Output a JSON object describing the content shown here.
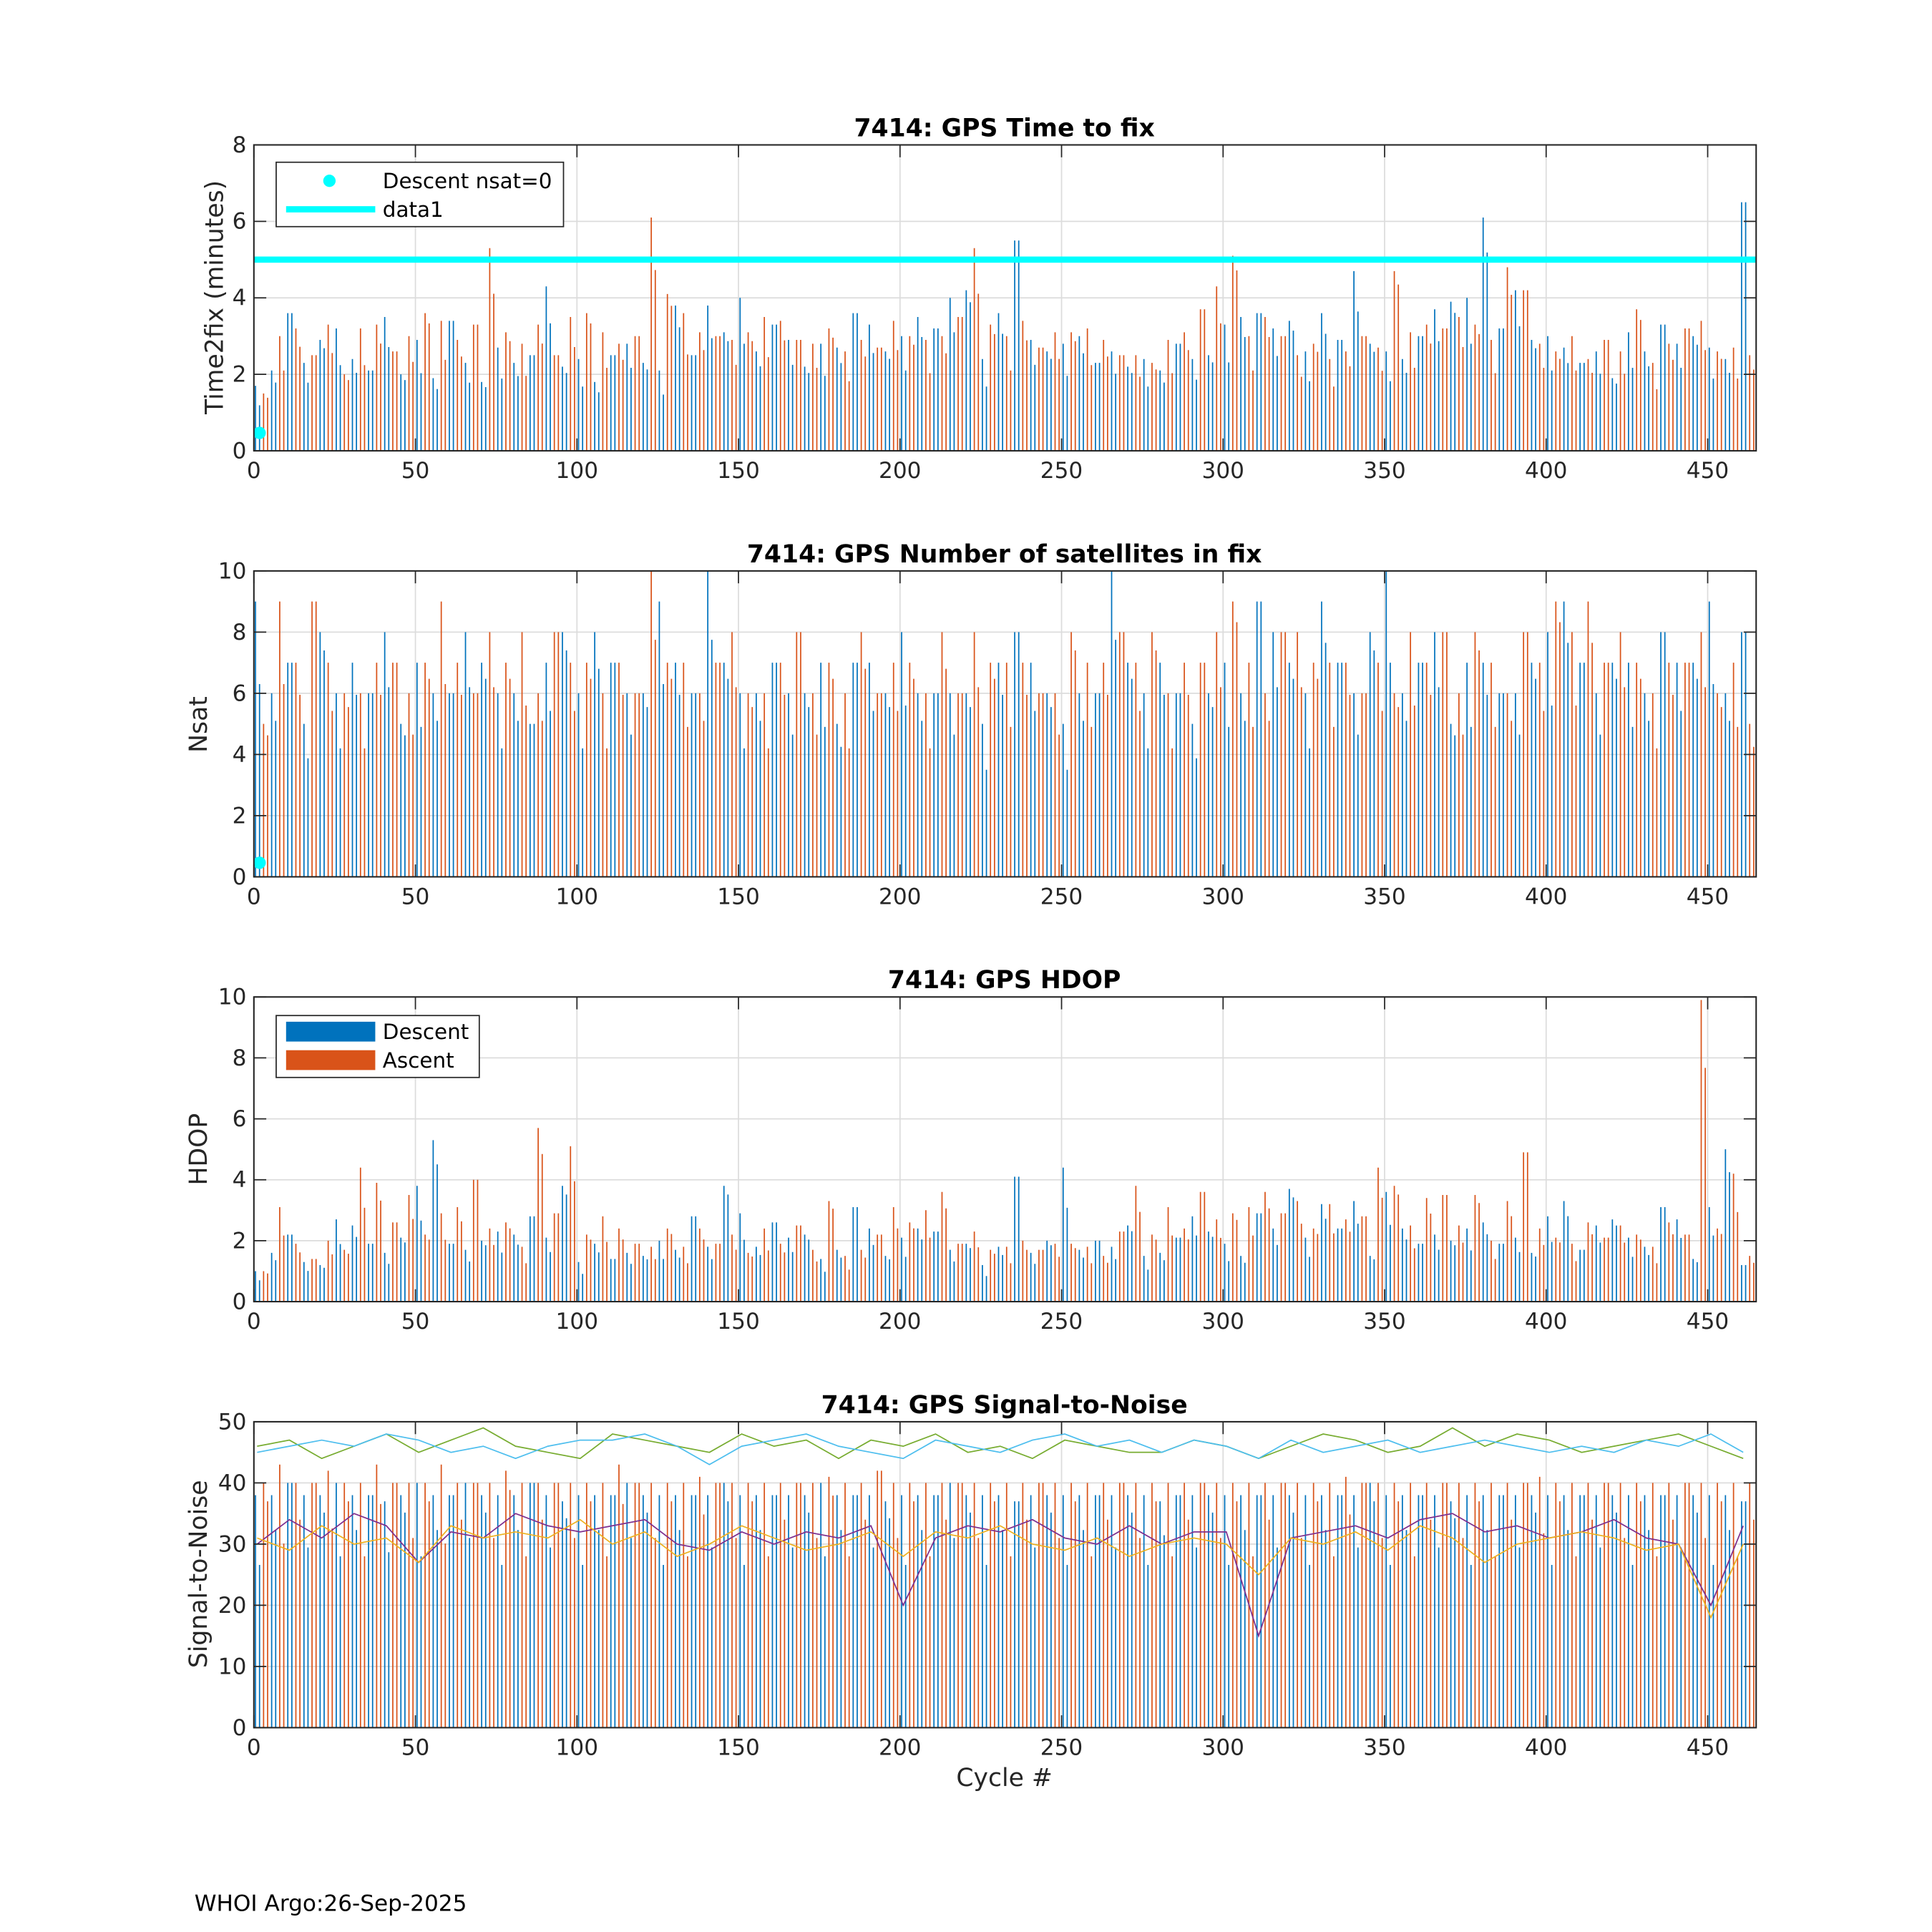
{
  "colors": {
    "descent": "#0072BD",
    "ascent": "#D95319",
    "cyan": "#00FFFF",
    "green": "#77AC30",
    "lightblue": "#4DBEEE",
    "purple": "#7E2F8E",
    "orange": "#EDB120",
    "grid": "#dcdcdc",
    "axis": "#262626"
  },
  "footer": "WHOI Argo:26-Sep-2025",
  "chart_data": [
    {
      "type": "bar",
      "title": "7414: GPS Time to fix",
      "xlabel": "",
      "ylabel": "Time2fix (minutes)",
      "xlim": [
        0,
        465
      ],
      "ylim": [
        0,
        8
      ],
      "xticks": [
        0,
        50,
        100,
        150,
        200,
        250,
        300,
        350,
        400,
        450
      ],
      "yticks": [
        0,
        2,
        4,
        6,
        8
      ],
      "grid": true,
      "legend_placement": "top-left",
      "legend": [
        "Descent nsat=0",
        "data1"
      ],
      "x_step": 5,
      "reference_line": {
        "name": "data1",
        "y": 5
      },
      "markers": [
        {
          "name": "Descent nsat=0",
          "x": 1,
          "y": 0.5
        }
      ],
      "series": [
        {
          "name": "Descent",
          "values": [
            1.7,
            2.1,
            3.6,
            2.3,
            2.9,
            3.2,
            2.4,
            2.1,
            3.5,
            2.0,
            2.9,
            1.9,
            3.4,
            2.3,
            1.8,
            2.7,
            2.3,
            2.5,
            4.3,
            2.2,
            2.4,
            1.8,
            2.5,
            2.8,
            2.3,
            2.1,
            3.8,
            2.5,
            3.8,
            3.1,
            4.0,
            2.6,
            3.3,
            2.9,
            2.2,
            2.8,
            2.7,
            3.6,
            3.3,
            2.6,
            3.0,
            3.5,
            3.2,
            4.0,
            4.2,
            2.4,
            3.6,
            5.5,
            2.9,
            2.6,
            2.8,
            3.0,
            2.3,
            2.6,
            2.2,
            2.4,
            2.1,
            2.8,
            2.4,
            2.5,
            3.3,
            3.5,
            3.6,
            3.2,
            3.4,
            2.6,
            3.6,
            2.9,
            4.7,
            2.8,
            2.6,
            2.4,
            3.0,
            3.7,
            3.9,
            4.0,
            6.1,
            3.2,
            4.2,
            2.9,
            3.0,
            2.7,
            2.3,
            2.6,
            1.9,
            3.1,
            2.6,
            3.3,
            2.8,
            3.0,
            2.7,
            2.4,
            6.5
          ]
        },
        {
          "name": "Ascent",
          "values": [
            1.5,
            3.0,
            3.2,
            2.5,
            3.3,
            2.0,
            3.2,
            3.3,
            2.6,
            3.0,
            3.6,
            3.4,
            2.9,
            3.3,
            5.3,
            3.1,
            2.8,
            3.3,
            2.5,
            3.5,
            3.6,
            3.1,
            2.8,
            3.0,
            6.1,
            4.1,
            3.6,
            3.1,
            3.0,
            2.9,
            3.1,
            3.5,
            3.4,
            2.9,
            2.8,
            3.2,
            2.6,
            2.9,
            2.7,
            3.4,
            3.0,
            2.9,
            3.0,
            3.5,
            5.3,
            3.3,
            3.0,
            3.4,
            2.7,
            3.1,
            3.1,
            3.2,
            2.9,
            2.5,
            2.5,
            2.3,
            2.9,
            3.1,
            3.7,
            4.3,
            5.1,
            3.0,
            3.5,
            3.0,
            2.5,
            2.8,
            2.4,
            2.6,
            3.0,
            2.7,
            4.7,
            3.1,
            3.3,
            3.2,
            3.5,
            3.3,
            2.9,
            4.8,
            4.2,
            2.8,
            2.6,
            3.0,
            2.4,
            2.9,
            2.6,
            3.7,
            2.3,
            2.8,
            3.2,
            3.4,
            2.6,
            2.7,
            2.5
          ]
        }
      ]
    },
    {
      "type": "bar",
      "title": "7414: GPS Number of satellites in fix",
      "xlabel": "",
      "ylabel": "Nsat",
      "xlim": [
        0,
        465
      ],
      "ylim": [
        0,
        10
      ],
      "xticks": [
        0,
        50,
        100,
        150,
        200,
        250,
        300,
        350,
        400,
        450
      ],
      "yticks": [
        0,
        2,
        4,
        6,
        8,
        10
      ],
      "grid": true,
      "x_step": 5,
      "markers": [
        {
          "name": "Descent nsat=0",
          "x": 1,
          "y": 0.5
        }
      ],
      "series": [
        {
          "name": "Descent",
          "values": [
            9,
            6,
            7,
            5,
            8,
            6,
            7,
            6,
            8,
            5,
            7,
            6,
            6,
            8,
            7,
            6,
            6,
            5,
            7,
            8,
            6,
            8,
            7,
            6,
            6,
            9,
            7,
            6,
            10,
            7,
            6,
            6,
            7,
            6,
            6,
            7,
            5,
            7,
            7,
            6,
            8,
            6,
            6,
            6,
            6,
            5,
            7,
            8,
            7,
            6,
            5,
            6,
            6,
            10,
            7,
            6,
            7,
            6,
            5,
            6,
            7,
            6,
            9,
            8,
            7,
            6,
            9,
            7,
            6,
            8,
            10,
            6,
            7,
            8,
            5,
            7,
            7,
            6,
            6,
            7,
            8,
            9,
            7,
            6,
            7,
            7,
            6,
            8,
            7,
            7,
            9,
            6,
            8
          ]
        },
        {
          "name": "Ascent",
          "values": [
            5,
            9,
            7,
            9,
            7,
            6,
            6,
            7,
            7,
            6,
            7,
            9,
            7,
            6,
            8,
            7,
            8,
            6,
            8,
            7,
            7,
            6,
            7,
            6,
            10,
            7,
            7,
            6,
            7,
            8,
            6,
            6,
            7,
            8,
            6,
            7,
            6,
            8,
            6,
            7,
            7,
            6,
            8,
            6,
            8,
            7,
            7,
            7,
            6,
            6,
            8,
            7,
            7,
            8,
            7,
            8,
            6,
            7,
            7,
            8,
            9,
            7,
            6,
            8,
            8,
            7,
            7,
            7,
            6,
            7,
            6,
            8,
            7,
            8,
            6,
            8,
            7,
            6,
            8,
            7,
            9,
            8,
            9,
            7,
            8,
            7,
            6,
            7,
            7,
            8,
            6,
            7,
            5
          ]
        }
      ]
    },
    {
      "type": "bar",
      "title": "7414: GPS HDOP",
      "xlabel": "",
      "ylabel": "HDOP",
      "xlim": [
        0,
        465
      ],
      "ylim": [
        0,
        10
      ],
      "xticks": [
        0,
        50,
        100,
        150,
        200,
        250,
        300,
        350,
        400,
        450
      ],
      "yticks": [
        0,
        2,
        4,
        6,
        8,
        10
      ],
      "grid": true,
      "legend_placement": "top-left",
      "legend": [
        "Descent",
        "Ascent"
      ],
      "x_step": 5,
      "series": [
        {
          "name": "Descent",
          "values": [
            1,
            1.6,
            2.2,
            1.3,
            1.2,
            2.7,
            2.5,
            1.9,
            1.6,
            2.1,
            3.8,
            5.3,
            1.9,
            1.7,
            2.0,
            2.3,
            2.2,
            2.8,
            2.1,
            3.8,
            1.3,
            1.9,
            1.4,
            1.6,
            1.5,
            2.0,
            1.7,
            2.8,
            1.8,
            3.8,
            2.9,
            1.8,
            2.6,
            2.1,
            2.2,
            1.4,
            1.7,
            3.1,
            2.4,
            1.5,
            2.1,
            2.4,
            2.3,
            1.7,
            1.9,
            1.2,
            1.8,
            4.1,
            1.6,
            2.0,
            4.4,
            1.7,
            2.0,
            1.8,
            2.5,
            1.5,
            1.6,
            2.1,
            2.8,
            2.3,
            1.9,
            1.5,
            2.9,
            2.4,
            3.7,
            2.1,
            3.2,
            2.4,
            3.3,
            1.5,
            3.6,
            2.4,
            1.9,
            2.2,
            2.0,
            2.4,
            2.6,
            1.9,
            2.1,
            1.6,
            2.8,
            3.3,
            1.7,
            2.5,
            2.7,
            2.1,
            1.8,
            3.1,
            2.7,
            1.4,
            3.1,
            5.0,
            1.2
          ]
        },
        {
          "name": "Ascent",
          "values": [
            1,
            3.1,
            1.9,
            1.4,
            2.0,
            1.7,
            4.4,
            3.9,
            2.6,
            3.5,
            2.2,
            2.9,
            3.1,
            4.0,
            2.4,
            2.6,
            1.8,
            5.7,
            2.9,
            5.1,
            2.2,
            2.8,
            2.4,
            1.9,
            1.8,
            2.4,
            1.8,
            2.4,
            1.9,
            2.2,
            1.6,
            2.4,
            1.9,
            2.5,
            1.7,
            3.3,
            1.5,
            1.7,
            2.2,
            3.1,
            2.6,
            3.0,
            3.6,
            1.9,
            2.3,
            1.7,
            1.8,
            2.0,
            1.7,
            1.9,
            1.9,
            1.8,
            1.5,
            2.3,
            3.8,
            2.2,
            3.1,
            2.4,
            3.6,
            2.7,
            2.9,
            3.1,
            3.6,
            2.9,
            3.3,
            2.4,
            3.2,
            2.7,
            2.8,
            4.4,
            3.8,
            2.5,
            3.4,
            3.5,
            2.5,
            3.5,
            2.0,
            3.3,
            4.9,
            2.4,
            2.1,
            1.9,
            2.6,
            2.1,
            2.5,
            2.2,
            1.8,
            2.6,
            2.2,
            9.9,
            2.4,
            4.2,
            1.5
          ]
        }
      ]
    },
    {
      "type": "bar",
      "title": "7414: GPS Signal-to-Noise",
      "xlabel": "Cycle #",
      "ylabel": "Signal-to-Noise",
      "xlim": [
        0,
        465
      ],
      "ylim": [
        0,
        50
      ],
      "xticks": [
        0,
        50,
        100,
        150,
        200,
        250,
        300,
        350,
        400,
        450
      ],
      "yticks": [
        0,
        10,
        20,
        30,
        40,
        50
      ],
      "grid": true,
      "x_step": 5,
      "line_x_step": 10,
      "series": [
        {
          "name": "Descent",
          "values": [
            38,
            38,
            40,
            38,
            38,
            40,
            38,
            38,
            37,
            38,
            40,
            38,
            38,
            40,
            38,
            38,
            38,
            40,
            38,
            37,
            38,
            38,
            38,
            40,
            38,
            38,
            38,
            38,
            38,
            40,
            38,
            38,
            38,
            38,
            38,
            40,
            38,
            38,
            38,
            37,
            38,
            38,
            38,
            40,
            38,
            38,
            38,
            37,
            38,
            38,
            38,
            38,
            38,
            38,
            38,
            38,
            37,
            38,
            38,
            38,
            38,
            38,
            38,
            38,
            38,
            38,
            38,
            38,
            38,
            40,
            38,
            38,
            38,
            38,
            37,
            38,
            38,
            38,
            38,
            38,
            38,
            38,
            38,
            38,
            38,
            38,
            38,
            38,
            38,
            38,
            38,
            38,
            37
          ]
        },
        {
          "name": "Ascent",
          "values": [
            40,
            43,
            40,
            40,
            42,
            40,
            40,
            43,
            40,
            40,
            40,
            43,
            40,
            40,
            40,
            42,
            40,
            40,
            40,
            40,
            40,
            40,
            43,
            40,
            40,
            40,
            40,
            41,
            40,
            40,
            40,
            40,
            40,
            40,
            40,
            41,
            40,
            40,
            42,
            40,
            40,
            40,
            40,
            40,
            40,
            40,
            40,
            40,
            40,
            40,
            40,
            40,
            40,
            40,
            40,
            40,
            40,
            40,
            40,
            40,
            40,
            40,
            40,
            40,
            40,
            40,
            40,
            41,
            40,
            40,
            40,
            40,
            40,
            40,
            40,
            40,
            40,
            40,
            40,
            41,
            40,
            40,
            40,
            40,
            40,
            40,
            40,
            40,
            40,
            40,
            40,
            40,
            40
          ]
        }
      ],
      "lines": [
        {
          "name": "green",
          "values": [
            46,
            47,
            44,
            46,
            48,
            45,
            47,
            49,
            46,
            45,
            44,
            48,
            47,
            46,
            45,
            48,
            46,
            47,
            44,
            47,
            46,
            48,
            45,
            46,
            44,
            47,
            46,
            45,
            45,
            47,
            46,
            44,
            46,
            48,
            47,
            45,
            46,
            49,
            46,
            48,
            47,
            45,
            46,
            47,
            48,
            46,
            44
          ]
        },
        {
          "name": "lightblue",
          "values": [
            45,
            46,
            47,
            46,
            48,
            47,
            45,
            46,
            44,
            46,
            47,
            47,
            48,
            46,
            43,
            46,
            47,
            48,
            46,
            45,
            44,
            47,
            46,
            45,
            47,
            48,
            46,
            47,
            45,
            47,
            46,
            44,
            47,
            45,
            46,
            47,
            45,
            46,
            47,
            46,
            45,
            46,
            45,
            47,
            46,
            48,
            45
          ]
        },
        {
          "name": "purple",
          "values": [
            30,
            34,
            31,
            35,
            33,
            27,
            32,
            31,
            35,
            33,
            32,
            33,
            34,
            30,
            29,
            32,
            30,
            32,
            31,
            33,
            20,
            31,
            33,
            32,
            34,
            31,
            30,
            33,
            30,
            32,
            32,
            15,
            31,
            32,
            33,
            31,
            34,
            35,
            32,
            33,
            31,
            32,
            34,
            31,
            30,
            20,
            33
          ]
        },
        {
          "name": "orange",
          "values": [
            31,
            29,
            33,
            30,
            31,
            27,
            33,
            31,
            32,
            31,
            34,
            30,
            32,
            28,
            30,
            33,
            31,
            29,
            30,
            32,
            28,
            32,
            31,
            33,
            30,
            29,
            31,
            28,
            30,
            31,
            30,
            25,
            31,
            30,
            32,
            29,
            33,
            31,
            27,
            30,
            31,
            32,
            31,
            29,
            30,
            18,
            30
          ]
        }
      ]
    }
  ]
}
